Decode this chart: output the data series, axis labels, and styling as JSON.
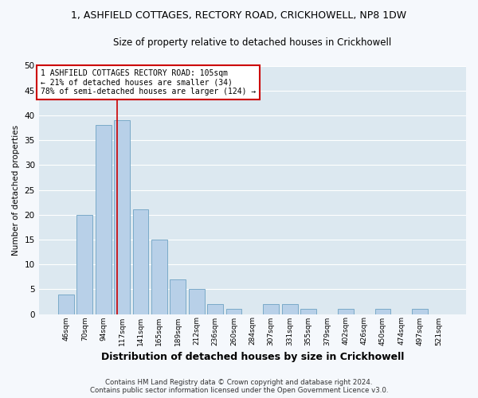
{
  "title": "1, ASHFIELD COTTAGES, RECTORY ROAD, CRICKHOWELL, NP8 1DW",
  "subtitle": "Size of property relative to detached houses in Crickhowell",
  "xlabel": "Distribution of detached houses by size in Crickhowell",
  "ylabel": "Number of detached properties",
  "bar_labels": [
    "46sqm",
    "70sqm",
    "94sqm",
    "117sqm",
    "141sqm",
    "165sqm",
    "189sqm",
    "212sqm",
    "236sqm",
    "260sqm",
    "284sqm",
    "307sqm",
    "331sqm",
    "355sqm",
    "379sqm",
    "402sqm",
    "426sqm",
    "450sqm",
    "474sqm",
    "497sqm",
    "521sqm"
  ],
  "bar_values": [
    4,
    20,
    38,
    39,
    21,
    15,
    7,
    5,
    2,
    1,
    0,
    2,
    2,
    1,
    0,
    1,
    0,
    1,
    0,
    1,
    0
  ],
  "bar_color": "#b8d0e8",
  "bar_edgecolor": "#7aaac8",
  "bar_width": 0.85,
  "vline_x": 2.72,
  "vline_color": "#cc0000",
  "ylim": [
    0,
    50
  ],
  "yticks": [
    0,
    5,
    10,
    15,
    20,
    25,
    30,
    35,
    40,
    45,
    50
  ],
  "annotation_text": "1 ASHFIELD COTTAGES RECTORY ROAD: 105sqm\n← 21% of detached houses are smaller (34)\n78% of semi-detached houses are larger (124) →",
  "annotation_box_facecolor": "#ffffff",
  "annotation_box_edgecolor": "#cc0000",
  "bg_color": "#dce8f0",
  "fig_bg_color": "#f5f8fc",
  "grid_color": "#ffffff",
  "footer1": "Contains HM Land Registry data © Crown copyright and database right 2024.",
  "footer2": "Contains public sector information licensed under the Open Government Licence v3.0."
}
